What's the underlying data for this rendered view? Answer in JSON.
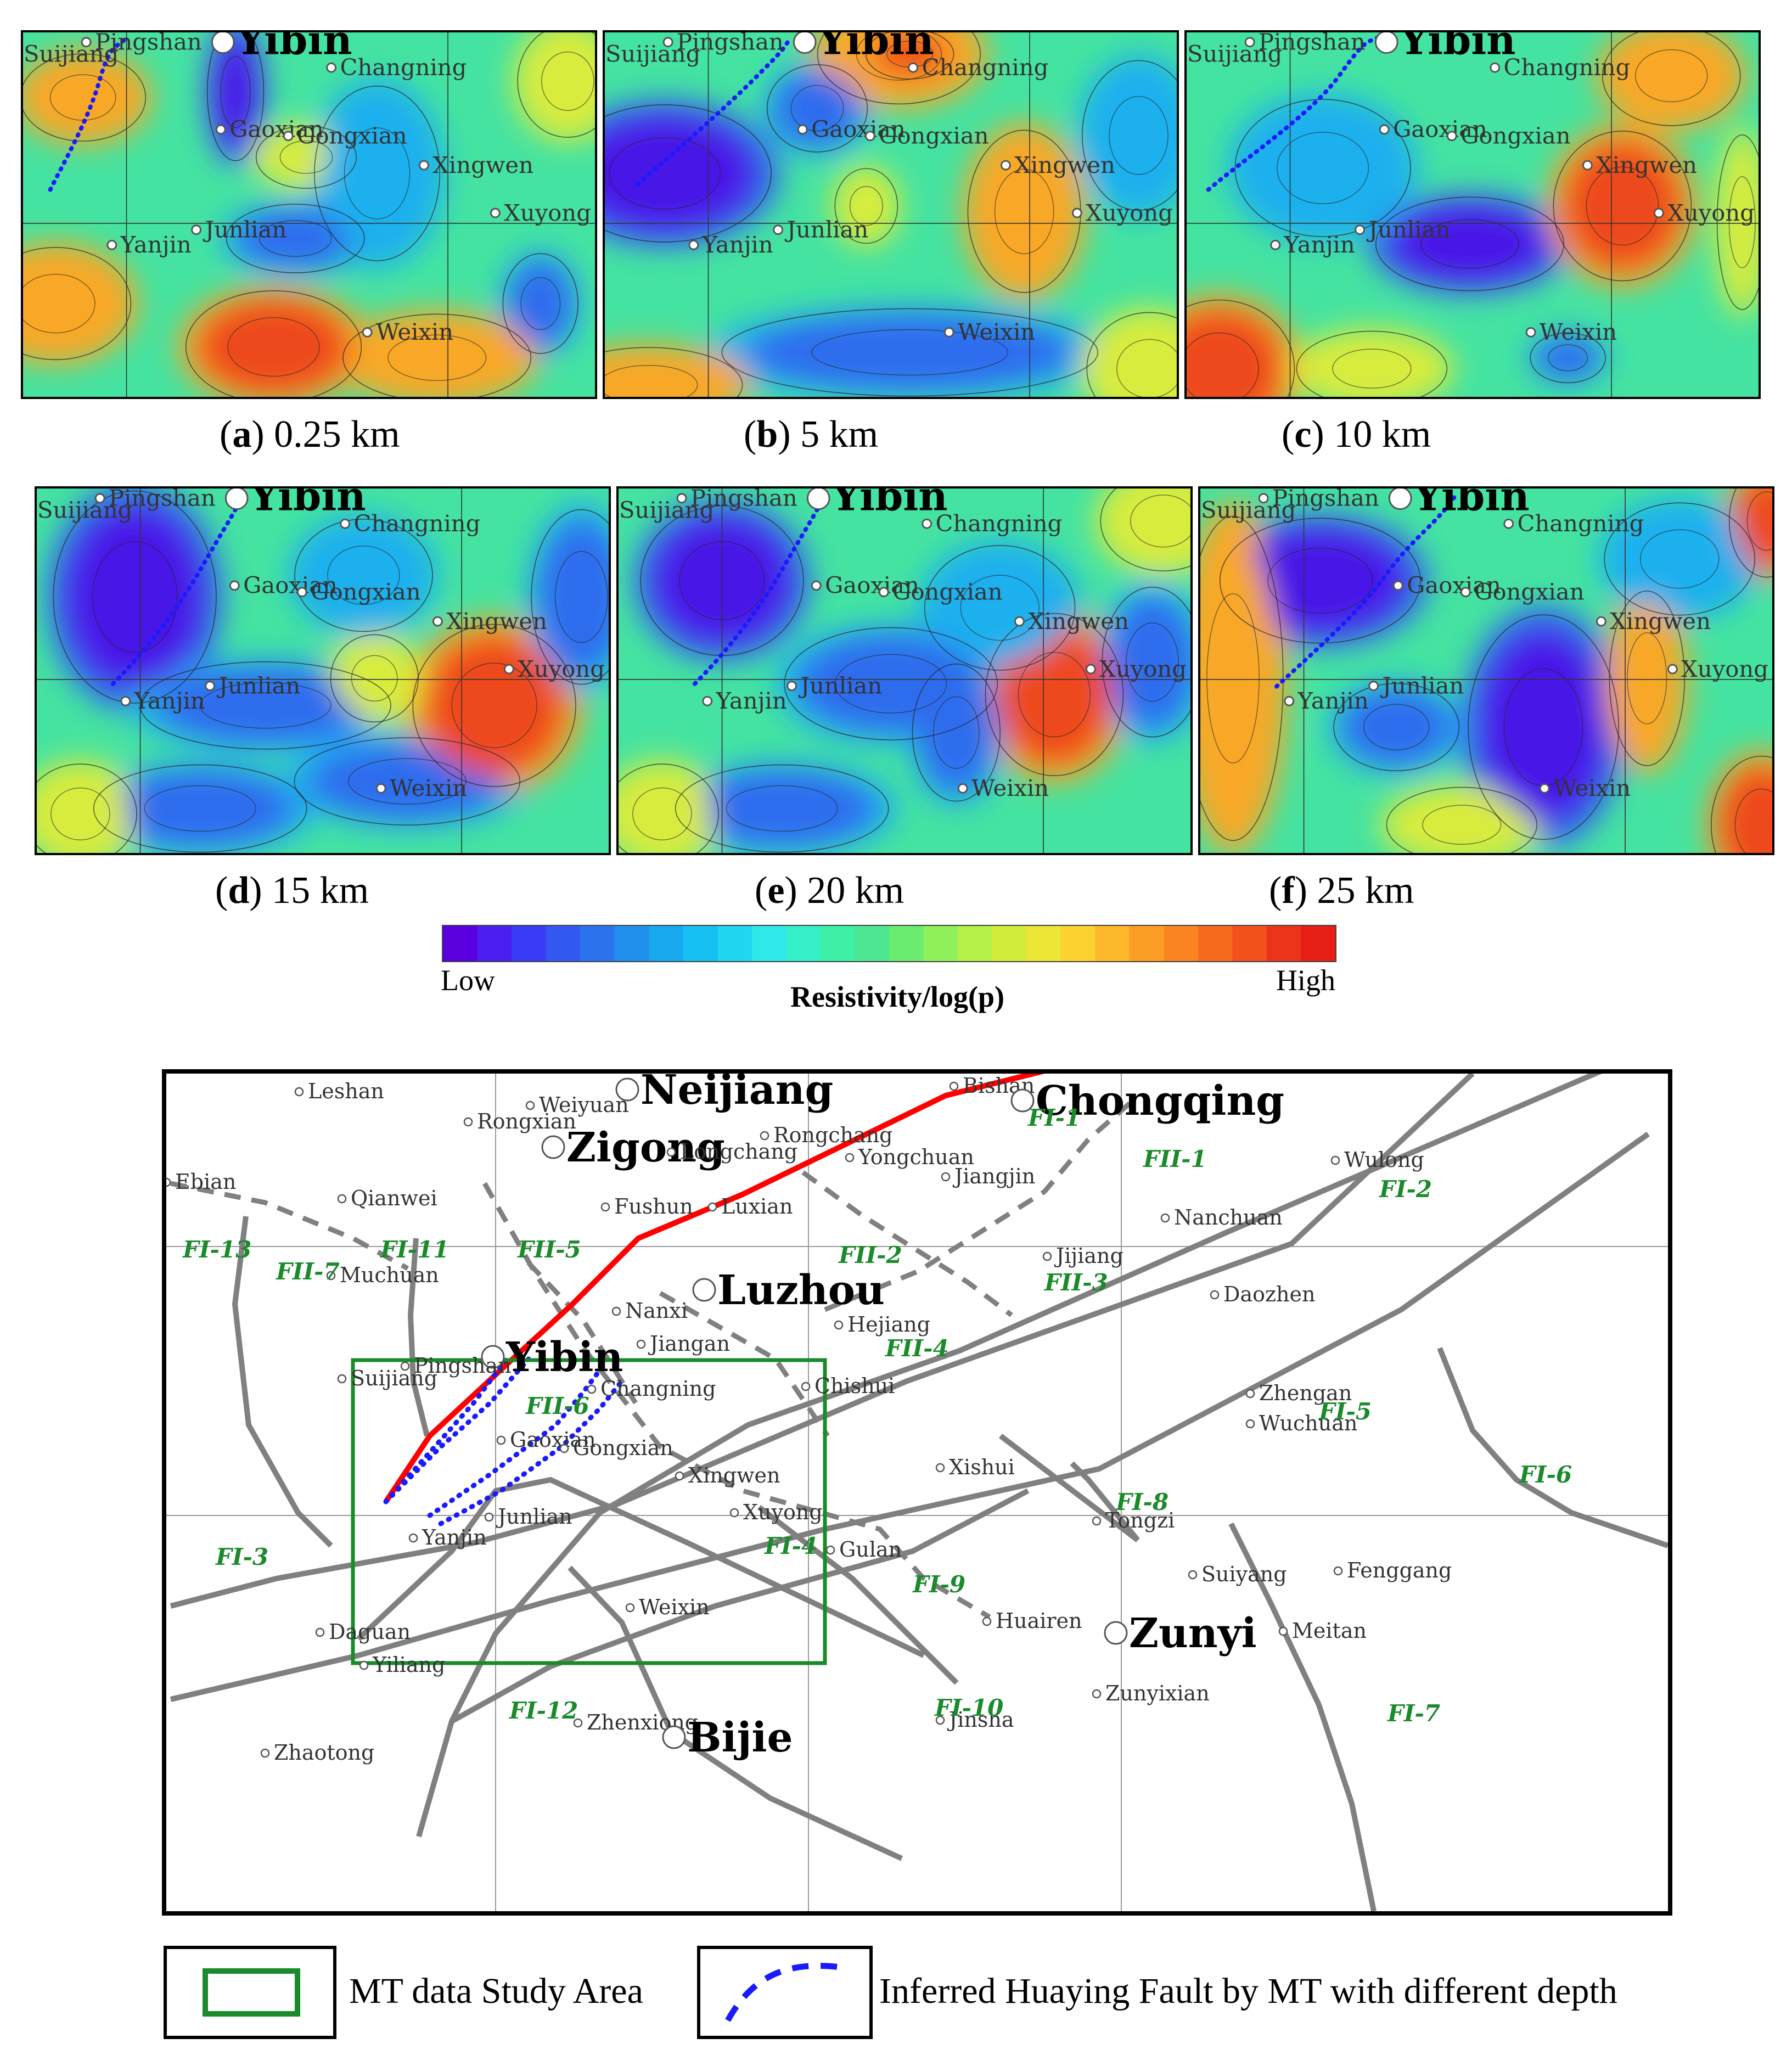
{
  "panels": [
    {
      "id": "a",
      "letter": "a",
      "depth": "0.25 km"
    },
    {
      "id": "b",
      "letter": "b",
      "depth": "5 km"
    },
    {
      "id": "c",
      "letter": "c",
      "depth": "10 km"
    },
    {
      "id": "d",
      "letter": "d",
      "depth": "15 km"
    },
    {
      "id": "e",
      "letter": "e",
      "depth": "20 km"
    },
    {
      "id": "f",
      "letter": "f",
      "depth": "25 km"
    }
  ],
  "panel_cities": [
    {
      "key": "yibin",
      "name": "Yibin"
    },
    {
      "key": "pingshan",
      "name": "Pingshan"
    },
    {
      "key": "suijiang",
      "name": "Suijiang"
    },
    {
      "key": "changning",
      "name": "Changning"
    },
    {
      "key": "gaoxian",
      "name": "Gaoxian"
    },
    {
      "key": "gongxian",
      "name": "Gongxian"
    },
    {
      "key": "xingwen",
      "name": "Xingwen"
    },
    {
      "key": "xuyong",
      "name": "Xuyong"
    },
    {
      "key": "junlian",
      "name": "Junlian"
    },
    {
      "key": "yanjin",
      "name": "Yanjin"
    },
    {
      "key": "weixin",
      "name": "Weixin"
    }
  ],
  "colorbar": {
    "low_label": "Low",
    "high_label": "High",
    "title": "Resistivity/log(p)",
    "colors": [
      "#5a00e0",
      "#4a1ef0",
      "#3a3cf5",
      "#3358f2",
      "#2b74ee",
      "#2090ec",
      "#18a8ee",
      "#16c0f0",
      "#20d6f0",
      "#2ee8ea",
      "#35f0c8",
      "#3ef0a6",
      "#4ee690",
      "#6aec70",
      "#90f05a",
      "#b4f048",
      "#d2ec3c",
      "#eee636",
      "#fcd230",
      "#fcb82a",
      "#fc9e26",
      "#fa8422",
      "#f66a1e",
      "#f2501c",
      "#ec341a",
      "#e61e16"
    ]
  },
  "map": {
    "cities": [
      {
        "name": "Leshan",
        "major": false
      },
      {
        "name": "Weiyuan",
        "major": false
      },
      {
        "name": "Neijiang",
        "major": true
      },
      {
        "name": "Bishan",
        "major": false
      },
      {
        "name": "Chongqing",
        "major": true
      },
      {
        "name": "Rongxian",
        "major": false
      },
      {
        "name": "Zigong",
        "major": true
      },
      {
        "name": "Longchang",
        "major": false
      },
      {
        "name": "Rongchang",
        "major": false
      },
      {
        "name": "Yongchuan",
        "major": false
      },
      {
        "name": "Jiangjin",
        "major": false
      },
      {
        "name": "Wulong",
        "major": false
      },
      {
        "name": "Ebian",
        "major": false
      },
      {
        "name": "Qianwei",
        "major": false
      },
      {
        "name": "Fushun",
        "major": false
      },
      {
        "name": "Luxian",
        "major": false
      },
      {
        "name": "Nanchuan",
        "major": false
      },
      {
        "name": "Muchuan",
        "major": false
      },
      {
        "name": "Jijiang",
        "major": false
      },
      {
        "name": "Luzhou",
        "major": true
      },
      {
        "name": "Nanxi",
        "major": false
      },
      {
        "name": "Daozhen",
        "major": false
      },
      {
        "name": "Hejiang",
        "major": false
      },
      {
        "name": "Jiangan",
        "major": false
      },
      {
        "name": "Yibin",
        "major": true
      },
      {
        "name": "Pingshan",
        "major": false
      },
      {
        "name": "Suijiang",
        "major": false
      },
      {
        "name": "Changning",
        "major": false
      },
      {
        "name": "Chishui",
        "major": false
      },
      {
        "name": "Zhengan",
        "major": false
      },
      {
        "name": "Wuchuan",
        "major": false
      },
      {
        "name": "Gaoxian",
        "major": false
      },
      {
        "name": "Gongxian",
        "major": false
      },
      {
        "name": "Xishui",
        "major": false
      },
      {
        "name": "Xingwen",
        "major": false
      },
      {
        "name": "Junlian",
        "major": false
      },
      {
        "name": "Xuyong",
        "major": false
      },
      {
        "name": "Tongzi",
        "major": false
      },
      {
        "name": "Yanjin",
        "major": false
      },
      {
        "name": "Gulan",
        "major": false
      },
      {
        "name": "Suiyang",
        "major": false
      },
      {
        "name": "Fenggang",
        "major": false
      },
      {
        "name": "Weixin",
        "major": false
      },
      {
        "name": "Huairen",
        "major": false
      },
      {
        "name": "Meitan",
        "major": false
      },
      {
        "name": "Daguan",
        "major": false
      },
      {
        "name": "Yiliang",
        "major": false
      },
      {
        "name": "Zunyi",
        "major": true
      },
      {
        "name": "Zunyixian",
        "major": false
      },
      {
        "name": "Jinsha",
        "major": false
      },
      {
        "name": "Zhenxiong",
        "major": false
      },
      {
        "name": "Bijie",
        "major": true
      },
      {
        "name": "Zhaotong",
        "major": false
      }
    ],
    "faults": [
      {
        "name": "FI-1"
      },
      {
        "name": "FII-1"
      },
      {
        "name": "FI-2"
      },
      {
        "name": "FI-13"
      },
      {
        "name": "FI-11"
      },
      {
        "name": "FII-5"
      },
      {
        "name": "FII-7"
      },
      {
        "name": "FII-2"
      },
      {
        "name": "FII-3"
      },
      {
        "name": "FII-4"
      },
      {
        "name": "FII-6"
      },
      {
        "name": "FI-5"
      },
      {
        "name": "FI-6"
      },
      {
        "name": "FI-8"
      },
      {
        "name": "FI-3"
      },
      {
        "name": "FI-4"
      },
      {
        "name": "FI-9"
      },
      {
        "name": "FI-12"
      },
      {
        "name": "FI-10"
      },
      {
        "name": "FI-7"
      }
    ],
    "colors": {
      "fault_primary": "#808080",
      "fault_red": "#ff0000",
      "inferred": "#1a1aff",
      "study_area": "#1a8a2a",
      "fault_label": "#1a8a2a"
    }
  },
  "legend": {
    "study_area_label": "MT data Study Area",
    "inferred_label": "Inferred Huaying Fault by MT with different depth"
  }
}
